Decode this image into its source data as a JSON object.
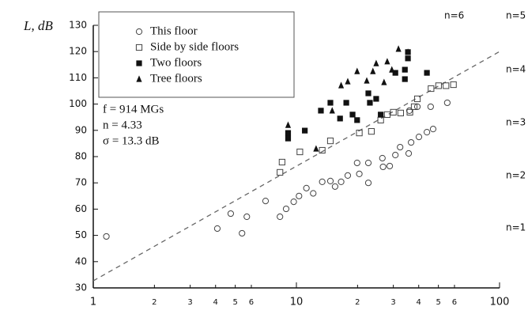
{
  "chart_data": {
    "type": "scatter",
    "ylabel": "L, dB",
    "xscale": "log",
    "xlim": [
      1,
      100
    ],
    "ylim": [
      30,
      130
    ],
    "xticks": [
      1,
      2,
      3,
      4,
      5,
      6,
      10,
      {
        "value": 20,
        "label": "2"
      },
      {
        "value": 30,
        "label": "3"
      },
      {
        "value": 40,
        "label": "4"
      },
      {
        "value": 50,
        "label": "5"
      },
      {
        "value": 60,
        "label": "6"
      },
      100
    ],
    "yticks": [
      30,
      40,
      50,
      60,
      70,
      80,
      90,
      100,
      110,
      120,
      130
    ],
    "series": [
      {
        "name": "This floor",
        "marker": "circle-open",
        "color": "#444",
        "x": [
          1.16,
          4.08,
          4.75,
          5.4,
          5.7,
          7.05,
          8.3,
          8.9,
          9.7,
          10.3,
          11.2,
          12.1,
          13.4,
          14.7,
          15.5,
          16.6,
          17.9,
          19.9,
          20.4,
          22.6,
          22.6,
          26.5,
          26.7,
          28.8,
          30.7,
          32.4,
          35.7,
          36.7,
          40.1,
          43.9,
          47.1,
          55.3,
          45.8,
          39.4,
          36
        ],
        "values": [
          49.6,
          52.6,
          58.3,
          50.8,
          57.1,
          63.1,
          57.1,
          60.1,
          62.8,
          65,
          68,
          66,
          70.4,
          70.7,
          68.6,
          70.4,
          72.8,
          77.6,
          73.4,
          70,
          77.6,
          79.4,
          76.1,
          76.4,
          80.6,
          83.6,
          81.2,
          85.4,
          87.5,
          89.3,
          90.5,
          100.5,
          99,
          99,
          97.5
        ]
      },
      {
        "name": "Side by side floors",
        "marker": "square-open",
        "color": "#444",
        "x": [
          8.3,
          8.5,
          10.4,
          13.4,
          14.7,
          20.4,
          23.4,
          26,
          28,
          30,
          32.6,
          36.2,
          38,
          39.4,
          46,
          50.1,
          54.5,
          59.3
        ],
        "values": [
          74,
          77.9,
          81.8,
          82.4,
          86,
          89,
          89.6,
          93.9,
          96,
          96.9,
          96.6,
          96.9,
          99,
          102,
          105.9,
          107,
          107,
          107.4
        ]
      },
      {
        "name": "Two floors",
        "marker": "square",
        "color": "#111",
        "x": [
          9.1,
          9.1,
          11,
          13.2,
          14.7,
          16.4,
          17.6,
          18.9,
          19.9,
          22.6,
          24.7,
          26,
          30.7,
          34.2,
          34.2,
          35.4,
          35.4,
          43.9,
          23
        ],
        "values": [
          89,
          86.9,
          89.9,
          97.5,
          100.5,
          94.5,
          100.5,
          96,
          93.9,
          104.1,
          102,
          96,
          111.9,
          113.1,
          109.5,
          117.4,
          119.8,
          111.9,
          100.5
        ]
      },
      {
        "name": "Tree floors",
        "marker": "triangle",
        "color": "#111",
        "x": [
          9.1,
          12.5,
          15,
          16.6,
          17.9,
          19.9,
          22.2,
          23.8,
          24.7,
          27,
          29.5,
          31.8,
          35.4,
          28
        ],
        "values": [
          92,
          83,
          97.5,
          107.1,
          108.6,
          112.5,
          108.9,
          112.5,
          115.5,
          108.3,
          113.1,
          121,
          119.8,
          116.2
        ]
      }
    ],
    "fit_line": {
      "x": [
        1,
        100
      ],
      "values": [
        32.7,
        120
      ],
      "color": "#666"
    },
    "annotations": [
      "f = 914  MGs",
      "n = 4.33",
      "σ = 13.3 dB"
    ],
    "n_labels": [
      "n=6",
      "n=5",
      "n=4",
      "n=3",
      "n=2",
      "n=1"
    ]
  }
}
